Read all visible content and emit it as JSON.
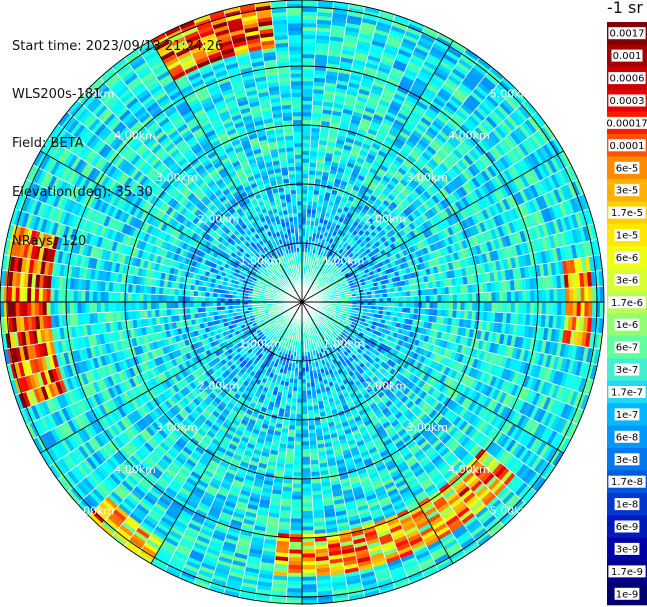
{
  "header": {
    "start_time": "Start time: 2023/09/13 21:24:26",
    "instrument": "WLS200s-181",
    "field": "Field: BETA",
    "elevation": "Elevation(deg): 35.30",
    "nrays": "NRays: 120"
  },
  "colorbar": {
    "unit": "-1 sr",
    "labels": [
      "0.0017",
      "0.001",
      "0.0006",
      "0.0003",
      "0.00017",
      "0.0001",
      "6e-5",
      "3e-5",
      "1.7e-5",
      "1e-5",
      "6e-6",
      "3e-6",
      "1.7e-6",
      "1e-6",
      "6e-7",
      "3e-7",
      "1.7e-7",
      "1e-7",
      "6e-8",
      "3e-8",
      "1.7e-8",
      "1e-8",
      "6e-9",
      "3e-9",
      "1.7e-9",
      "1e-9"
    ],
    "colors": [
      "#7f0000",
      "#a50000",
      "#c80000",
      "#e60000",
      "#ff1a00",
      "#ff5200",
      "#ff8a00",
      "#ffb000",
      "#ffd000",
      "#ffe800",
      "#f0ff10",
      "#d8ff30",
      "#b8ff50",
      "#90ff70",
      "#60ffa0",
      "#40f0d0",
      "#20d8f0",
      "#00b8ff",
      "#0098ff",
      "#0078f0",
      "#0058e0",
      "#0038d0",
      "#0018c0",
      "#0000a8",
      "#000090",
      "#000070"
    ]
  },
  "chart_data": {
    "type": "heatmap",
    "projection": "polar-ppi",
    "n_rays": 120,
    "range_ring_labels_km": [
      1,
      2,
      3,
      4,
      5
    ],
    "range_ring_label_text": [
      "1.00km",
      "2.00km",
      "3.00km",
      "4.00km",
      "5.00km"
    ],
    "value_scale": "log",
    "value_range": [
      1e-09,
      0.0017
    ],
    "features": [
      {
        "description": "elevated backscatter arc",
        "sector_deg": [
          330,
          355
        ],
        "range_km": [
          4.3,
          5.2
        ],
        "level": "3e-5 to 3e-4"
      },
      {
        "description": "elevated backscatter arc",
        "sector_deg": [
          250,
          285
        ],
        "range_km": [
          4.2,
          5.0
        ],
        "level": "1e-5 to 1e-4"
      },
      {
        "description": "elevated backscatter band",
        "sector_deg": [
          130,
          185
        ],
        "range_km": [
          3.9,
          4.6
        ],
        "level": "1e-6 to 1e-5"
      },
      {
        "description": "elevated backscatter patch",
        "sector_deg": [
          210,
          225
        ],
        "range_km": [
          4.6,
          5.1
        ],
        "level": "3e-6 to 1e-5"
      },
      {
        "description": "elevated backscatter patch",
        "sector_deg": [
          80,
          100
        ],
        "range_km": [
          4.4,
          4.9
        ],
        "level": "1e-6 to 1e-5"
      }
    ]
  }
}
